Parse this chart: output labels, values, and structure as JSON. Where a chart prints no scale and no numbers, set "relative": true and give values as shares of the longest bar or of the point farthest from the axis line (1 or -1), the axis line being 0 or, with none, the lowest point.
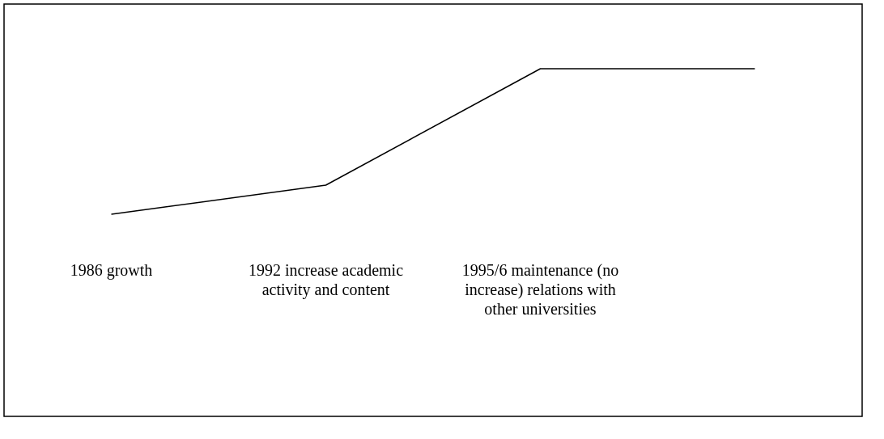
{
  "chart_data": {
    "type": "line",
    "relative": true,
    "categories": [
      "1986 growth",
      "1992 increase academic activity and content",
      "1995/6 maintenance (no increase) relations with other universities",
      null
    ],
    "series": [
      {
        "color": "#000000",
        "values": [
          0,
          0.2,
          1,
          1
        ]
      }
    ],
    "marker": "none",
    "line_style": "solid"
  }
}
